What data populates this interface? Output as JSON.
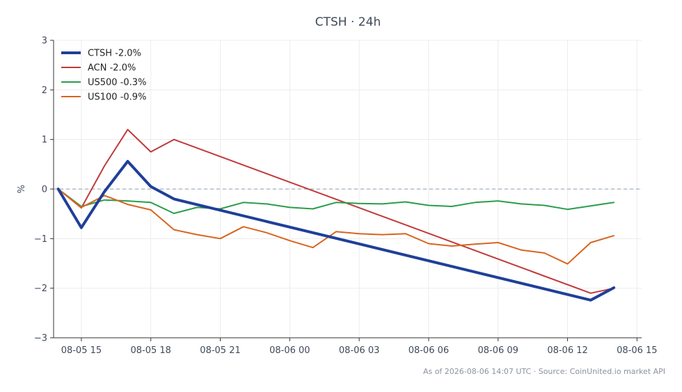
{
  "chart_data": {
    "type": "line",
    "title": "CTSH · 24h",
    "ylabel": "%",
    "xlabel": "",
    "ylim": [
      -3,
      3
    ],
    "yticks": [
      {
        "value": 3,
        "label": "3"
      },
      {
        "value": 2,
        "label": "2"
      },
      {
        "value": 1,
        "label": "1"
      },
      {
        "value": 0,
        "label": "0"
      },
      {
        "value": -1,
        "label": "−1"
      },
      {
        "value": -2,
        "label": "−2"
      },
      {
        "value": -3,
        "label": "−3"
      }
    ],
    "x": [
      "08-05 14:00",
      "08-05 15:00",
      "08-05 16:00",
      "08-05 17:00",
      "08-05 18:00",
      "08-05 19:00",
      "08-05 21:00",
      "08-05 22:00",
      "08-05 23:00",
      "08-06 00:00",
      "08-06 01:00",
      "08-06 02:00",
      "08-06 03:00",
      "08-06 05:00",
      "08-06 06:00",
      "08-06 07:00",
      "08-06 08:00",
      "08-06 09:00",
      "08-06 10:00",
      "08-06 11:00",
      "08-06 12:00",
      "08-06 13:00",
      "08-06 14:00"
    ],
    "xticks": [
      {
        "x": "08-05 15:00",
        "label": "08-05 15"
      },
      {
        "x": "08-05 18:00",
        "label": "08-05 18"
      },
      {
        "x": "08-05 21:00",
        "label": "08-05 21"
      },
      {
        "x": "08-06 00:00",
        "label": "08-06 00"
      },
      {
        "x": "08-06 03:00",
        "label": "08-06 03"
      },
      {
        "x": "08-06 06:00",
        "label": "08-06 06"
      },
      {
        "x": "08-06 09:00",
        "label": "08-06 09"
      },
      {
        "x": "08-06 12:00",
        "label": "08-06 12"
      },
      {
        "x": "08-06 15:00",
        "label": "08-06 15"
      }
    ],
    "xlim": [
      "08-05 13:48",
      "08-06 15:12"
    ],
    "grid": true,
    "legend_position": "top-left",
    "series": [
      {
        "name": "CTSH -2.0%",
        "color": "#1f3f99",
        "points": [
          [
            "08-05 14:00",
            0.0
          ],
          [
            "08-05 15:00",
            -0.78
          ],
          [
            "08-05 16:00",
            -0.05
          ],
          [
            "08-05 17:00",
            0.56
          ],
          [
            "08-05 18:00",
            0.05
          ],
          [
            "08-05 19:00",
            -0.2
          ],
          [
            "08-06 13:00",
            -2.24
          ],
          [
            "08-06 14:00",
            -1.99
          ]
        ]
      },
      {
        "name": "ACN -2.0%",
        "color": "#c03a3a",
        "points": [
          [
            "08-05 14:00",
            0.0
          ],
          [
            "08-05 15:00",
            -0.38
          ],
          [
            "08-05 16:00",
            0.47
          ],
          [
            "08-05 17:00",
            1.2
          ],
          [
            "08-05 18:00",
            0.75
          ],
          [
            "08-05 19:00",
            1.0
          ],
          [
            "08-06 13:00",
            -2.1
          ],
          [
            "08-06 14:00",
            -2.0
          ]
        ]
      },
      {
        "name": "US500 -0.3%",
        "color": "#2a9d4a",
        "points": [
          [
            "08-05 14:00",
            0.0
          ],
          [
            "08-05 15:00",
            -0.35
          ],
          [
            "08-05 16:00",
            -0.22
          ],
          [
            "08-05 17:00",
            -0.24
          ],
          [
            "08-05 18:00",
            -0.27
          ],
          [
            "08-05 19:00",
            -0.49
          ],
          [
            "08-05 20:00",
            -0.37
          ],
          [
            "08-05 21:00",
            -0.4
          ],
          [
            "08-05 22:00",
            -0.27
          ],
          [
            "08-05 23:00",
            -0.3
          ],
          [
            "08-06 00:00",
            -0.37
          ],
          [
            "08-06 01:00",
            -0.4
          ],
          [
            "08-06 02:00",
            -0.27
          ],
          [
            "08-06 03:00",
            -0.29
          ],
          [
            "08-06 04:00",
            -0.3
          ],
          [
            "08-06 05:00",
            -0.26
          ],
          [
            "08-06 06:00",
            -0.33
          ],
          [
            "08-06 07:00",
            -0.35
          ],
          [
            "08-06 08:00",
            -0.27
          ],
          [
            "08-06 09:00",
            -0.24
          ],
          [
            "08-06 10:00",
            -0.3
          ],
          [
            "08-06 11:00",
            -0.33
          ],
          [
            "08-06 12:00",
            -0.41
          ],
          [
            "08-06 13:00",
            -0.34
          ],
          [
            "08-06 14:00",
            -0.27
          ]
        ]
      },
      {
        "name": "US100 -0.9%",
        "color": "#d8641f",
        "points": [
          [
            "08-05 14:00",
            0.0
          ],
          [
            "08-05 15:00",
            -0.37
          ],
          [
            "08-05 16:00",
            -0.13
          ],
          [
            "08-05 17:00",
            -0.31
          ],
          [
            "08-05 18:00",
            -0.42
          ],
          [
            "08-05 19:00",
            -0.82
          ],
          [
            "08-05 20:00",
            -0.92
          ],
          [
            "08-05 21:00",
            -1.0
          ],
          [
            "08-05 22:00",
            -0.76
          ],
          [
            "08-05 23:00",
            -0.88
          ],
          [
            "08-06 00:00",
            -1.04
          ],
          [
            "08-06 01:00",
            -1.18
          ],
          [
            "08-06 02:00",
            -0.86
          ],
          [
            "08-06 03:00",
            -0.9
          ],
          [
            "08-06 04:00",
            -0.92
          ],
          [
            "08-06 05:00",
            -0.9
          ],
          [
            "08-06 06:00",
            -1.1
          ],
          [
            "08-06 07:00",
            -1.15
          ],
          [
            "08-06 08:00",
            -1.11
          ],
          [
            "08-06 09:00",
            -1.08
          ],
          [
            "08-06 10:00",
            -1.23
          ],
          [
            "08-06 11:00",
            -1.29
          ],
          [
            "08-06 12:00",
            -1.51
          ],
          [
            "08-06 13:00",
            -1.08
          ],
          [
            "08-06 14:00",
            -0.94
          ]
        ]
      }
    ],
    "reference_line": {
      "y": 0,
      "style": "dashed",
      "color": "#8a9aae"
    }
  },
  "footer": "As of 2026-08-06 14:07 UTC · Source: CoinUnited.io market API",
  "colors": {
    "axis": "#333333",
    "grid": "#ececec",
    "text": "#3f4a5a"
  }
}
